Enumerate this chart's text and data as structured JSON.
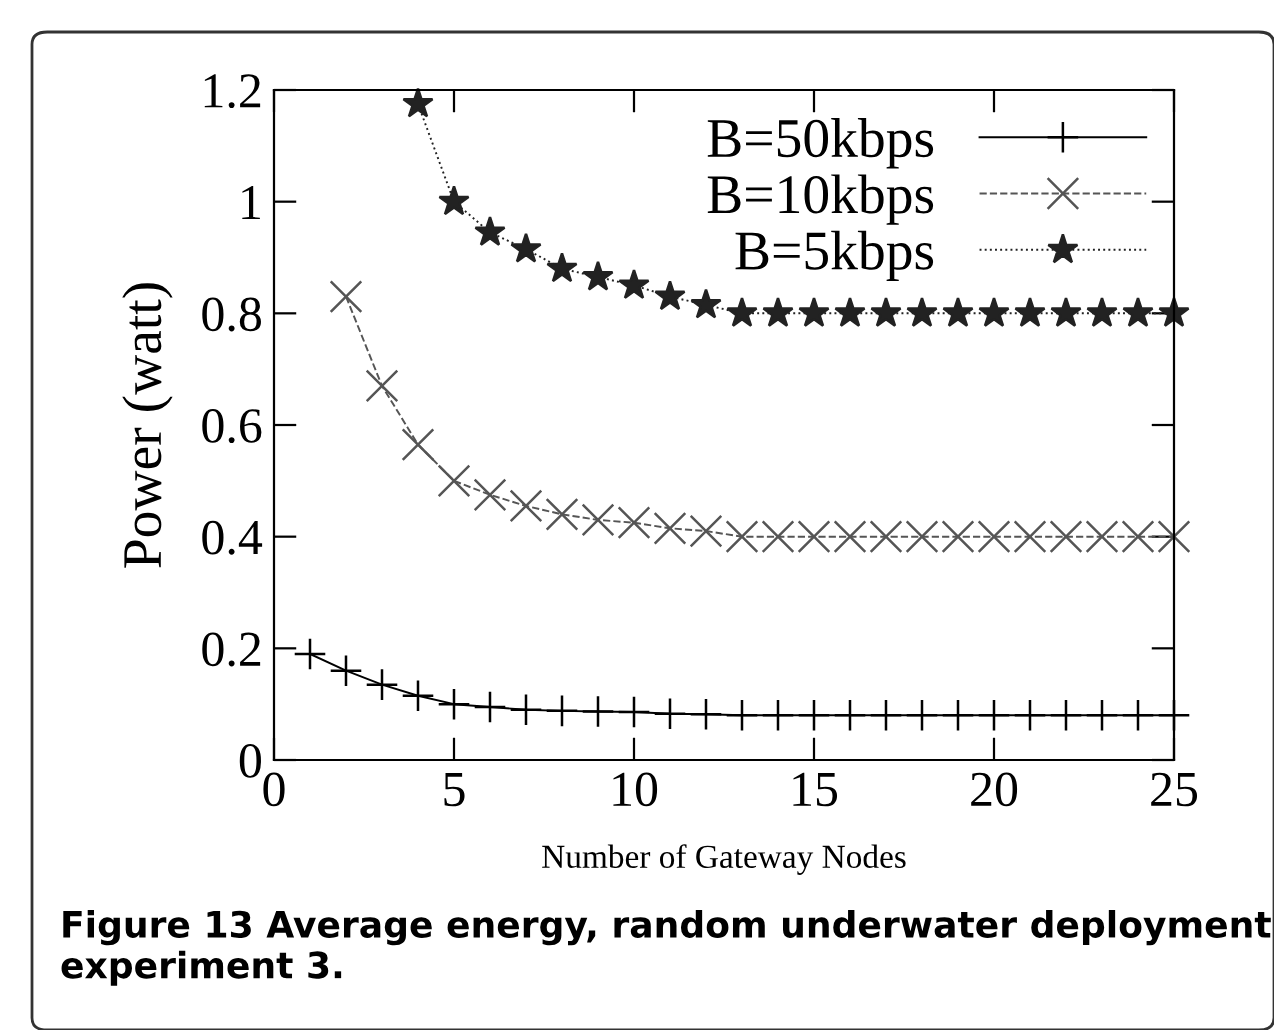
{
  "chart_data": {
    "type": "line",
    "xlabel": "Number of Gateway Nodes",
    "ylabel": "Power (watt)",
    "xlim": [
      0,
      25
    ],
    "xticks": [
      0,
      5,
      10,
      15,
      20,
      25
    ],
    "ylim": [
      0,
      1.2
    ],
    "yticks": [
      0,
      0.2,
      0.4,
      0.6,
      0.8,
      1,
      1.2
    ],
    "grid": false,
    "legend": "top right",
    "annotations": [
      "Figure 13 Average energy, random underwater deployment experiment 3."
    ],
    "series": [
      {
        "name": "B=50kbps",
        "color": "#000000",
        "marker": "cross",
        "line_style": "solid",
        "x": [
          1,
          2,
          3,
          4,
          5,
          6,
          7,
          8,
          9,
          10,
          11,
          12,
          13,
          14,
          15,
          16,
          17,
          18,
          19,
          20,
          21,
          22,
          23,
          24,
          25
        ],
        "values": [
          0.19,
          0.16,
          0.135,
          0.115,
          0.1,
          0.095,
          0.09,
          0.088,
          0.087,
          0.086,
          0.083,
          0.082,
          0.08,
          0.08,
          0.08,
          0.08,
          0.08,
          0.08,
          0.08,
          0.08,
          0.08,
          0.08,
          0.08,
          0.08,
          0.08
        ]
      },
      {
        "name": "B=10kbps",
        "color": "#555555",
        "marker": "x",
        "line_style": "dashed",
        "x": [
          2,
          3,
          4,
          5,
          6,
          7,
          8,
          9,
          10,
          11,
          12,
          13,
          14,
          15,
          16,
          17,
          18,
          19,
          20,
          21,
          22,
          23,
          24,
          25
        ],
        "values": [
          0.83,
          0.67,
          0.565,
          0.5,
          0.475,
          0.455,
          0.44,
          0.43,
          0.425,
          0.415,
          0.41,
          0.4,
          0.4,
          0.4,
          0.4,
          0.4,
          0.4,
          0.4,
          0.4,
          0.4,
          0.4,
          0.4,
          0.4,
          0.4
        ]
      },
      {
        "name": "B=5kbps",
        "color": "#222222",
        "marker": "star",
        "line_style": "dotted",
        "x": [
          4,
          5,
          6,
          7,
          8,
          9,
          10,
          11,
          12,
          13,
          14,
          15,
          16,
          17,
          18,
          19,
          20,
          21,
          22,
          23,
          24,
          25
        ],
        "values": [
          1.175,
          1.0,
          0.945,
          0.915,
          0.88,
          0.865,
          0.85,
          0.83,
          0.815,
          0.8,
          0.8,
          0.8,
          0.8,
          0.8,
          0.8,
          0.8,
          0.8,
          0.8,
          0.8,
          0.8,
          0.8,
          0.8
        ]
      }
    ]
  }
}
